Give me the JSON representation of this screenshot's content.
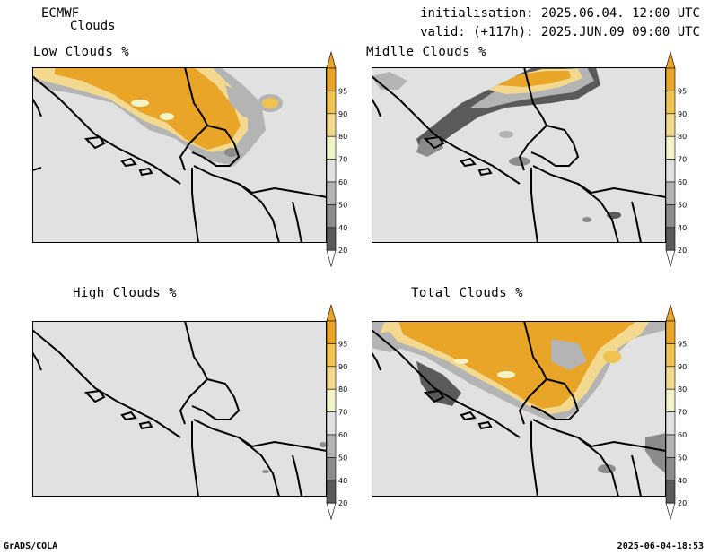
{
  "header": {
    "model": "ECMWF",
    "product": "Clouds",
    "init": "initialisation: 2025.06.04. 12:00 UTC",
    "valid": "valid: (+117h): 2025.JUN.09 09:00 UTC"
  },
  "panels": [
    {
      "title": "Low Clouds %"
    },
    {
      "title": "Midlle Clouds %"
    },
    {
      "title": "High Clouds %"
    },
    {
      "title": "Total Clouds %"
    }
  ],
  "colorbar": {
    "labels": [
      "95",
      "90",
      "80",
      "70",
      "60",
      "50",
      "40",
      "20"
    ],
    "colors": [
      "#e8a528",
      "#f0c250",
      "#f3d98f",
      "#f3f3c8",
      "#e1e1e1",
      "#b4b4b4",
      "#8c8c8c",
      "#5a5a5a",
      "#fafafa"
    ]
  },
  "footer": {
    "left": "GrADS/COLA",
    "right": "2025-06-04-18:53"
  }
}
